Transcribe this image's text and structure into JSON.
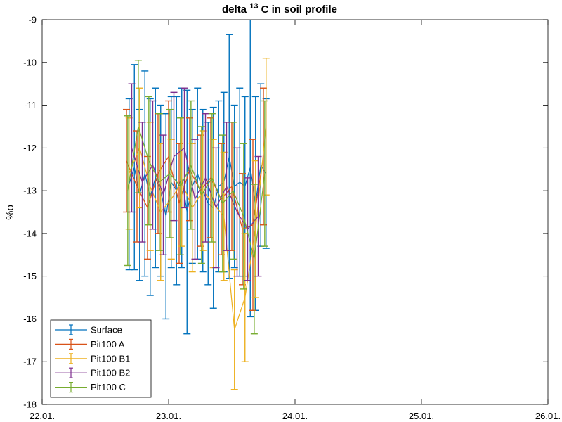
{
  "chart_data": {
    "type": "line",
    "error_bars": true,
    "title": {
      "before": "delta ",
      "superscript": "13",
      "after": " C in soil profile"
    },
    "ylabel": "%o",
    "x_ticks": [
      "22.01.",
      "23.01.",
      "24.01.",
      "25.01.",
      "26.01."
    ],
    "y_ticks": [
      -9,
      -10,
      -11,
      -12,
      -13,
      -14,
      -15,
      -16,
      -17,
      -18
    ],
    "xlim": [
      "22.01.",
      "26.01."
    ],
    "ylim": [
      -18,
      -9
    ],
    "grid": false,
    "legend_location": "bottom-left",
    "series": [
      {
        "name": "Surface",
        "color": "#0072BD",
        "x": [
          "22.01. 16:30",
          "22.01. 17:30",
          "22.01. 18:30",
          "22.01. 19:30",
          "22.01. 20:30",
          "22.01. 21:30",
          "22.01. 22:30",
          "22.01. 23:30",
          "23.01. 00:30",
          "23.01. 01:30",
          "23.01. 02:30",
          "23.01. 03:30",
          "23.01. 04:30",
          "23.01. 05:30",
          "23.01. 06:30",
          "23.01. 07:30",
          "23.01. 08:30",
          "23.01. 09:30",
          "23.01. 10:30",
          "23.01. 11:30",
          "23.01. 12:30",
          "23.01. 13:30",
          "23.01. 14:30",
          "23.01. 15:30",
          "23.01. 16:30",
          "23.01. 17:30",
          "23.01. 18:30"
        ],
        "y": [
          -12.85,
          -12.45,
          -13.1,
          -12.6,
          -13.15,
          -12.7,
          -13.0,
          -13.6,
          -12.8,
          -13.0,
          -12.7,
          -13.5,
          -12.9,
          -12.6,
          -13.0,
          -13.3,
          -13.4,
          -12.9,
          -12.8,
          -12.2,
          -12.9,
          -12.8,
          -12.9,
          -12.45,
          -13.3,
          -12.4,
          -12.6
        ],
        "err": [
          2.0,
          2.4,
          2.0,
          2.4,
          2.3,
          2.1,
          2.0,
          2.4,
          2.0,
          2.2,
          2.1,
          2.85,
          1.8,
          2.0,
          1.9,
          1.9,
          2.35,
          2.0,
          2.1,
          2.85,
          1.9,
          2.2,
          2.1,
          3.5,
          2.5,
          1.9,
          1.75
        ]
      },
      {
        "name": "Pit100 A",
        "color": "#D95319",
        "x": [
          "22.01. 16:00",
          "22.01. 18:00",
          "22.01. 20:00",
          "22.01. 22:00",
          "23.01. 00:00",
          "23.01. 02:00",
          "23.01. 04:00",
          "23.01. 06:00",
          "23.01. 08:00",
          "23.01. 10:00",
          "23.01. 12:00",
          "23.01. 14:00",
          "23.01. 16:00",
          "23.01. 18:00"
        ],
        "y": [
          -12.3,
          -12.9,
          -13.4,
          -12.6,
          -12.2,
          -13.3,
          -12.5,
          -13.0,
          -12.7,
          -13.2,
          -12.9,
          -13.9,
          -13.8,
          -12.2
        ],
        "err": [
          1.2,
          1.3,
          1.2,
          1.4,
          1.3,
          1.4,
          1.2,
          1.3,
          1.4,
          1.3,
          1.5,
          1.3,
          2.0,
          1.6
        ]
      },
      {
        "name": "Pit100 B1",
        "color": "#EDB120",
        "x": [
          "22.01. 16:30",
          "22.01. 18:30",
          "22.01. 20:30",
          "22.01. 22:30",
          "23.01. 00:30",
          "23.01. 02:30",
          "23.01. 04:30",
          "23.01. 06:30",
          "23.01. 08:30",
          "23.01. 10:30",
          "23.01. 12:30",
          "23.01. 14:30",
          "23.01. 16:30",
          "23.01. 18:30"
        ],
        "y": [
          -12.6,
          -12.0,
          -12.9,
          -13.5,
          -13.2,
          -12.8,
          -13.4,
          -13.0,
          -13.3,
          -13.6,
          -16.25,
          -15.5,
          -13.9,
          -11.5
        ],
        "err": [
          1.3,
          1.4,
          1.5,
          1.6,
          1.4,
          1.5,
          1.5,
          1.4,
          1.5,
          1.5,
          1.4,
          1.5,
          1.6,
          1.6
        ]
      },
      {
        "name": "Pit100 B2",
        "color": "#7E2F8E",
        "x": [
          "22.01. 17:00",
          "22.01. 19:00",
          "22.01. 21:00",
          "22.01. 23:00",
          "23.01. 01:00",
          "23.01. 03:00",
          "23.01. 05:00",
          "23.01. 07:00",
          "23.01. 09:00",
          "23.01. 11:00",
          "23.01. 13:00",
          "23.01. 15:00",
          "23.01. 17:00"
        ],
        "y": [
          -12.0,
          -12.8,
          -12.4,
          -13.1,
          -12.2,
          -12.0,
          -13.2,
          -12.7,
          -13.4,
          -12.9,
          -13.5,
          -13.9,
          -13.6
        ],
        "err": [
          1.5,
          1.4,
          1.5,
          1.4,
          1.5,
          1.4,
          1.4,
          1.5,
          1.4,
          1.5,
          1.5,
          1.2,
          1.4
        ]
      },
      {
        "name": "Pit100 C",
        "color": "#77AC30",
        "x": [
          "22.01. 16:15",
          "22.01. 18:15",
          "22.01. 20:15",
          "22.01. 22:15",
          "23.01. 00:15",
          "23.01. 02:15",
          "23.01. 04:15",
          "23.01. 06:15",
          "23.01. 08:15",
          "23.01. 10:15",
          "23.01. 12:15",
          "23.01. 14:15",
          "23.01. 16:15",
          "23.01. 18:15"
        ],
        "y": [
          -13.0,
          -11.5,
          -12.3,
          -12.8,
          -12.6,
          -12.9,
          -12.4,
          -13.1,
          -12.7,
          -13.3,
          -13.0,
          -13.6,
          -14.6,
          -12.6
        ],
        "err": [
          1.75,
          1.55,
          1.5,
          1.6,
          1.5,
          1.6,
          1.5,
          1.6,
          1.5,
          1.6,
          1.6,
          1.7,
          1.75,
          1.7
        ]
      }
    ]
  }
}
